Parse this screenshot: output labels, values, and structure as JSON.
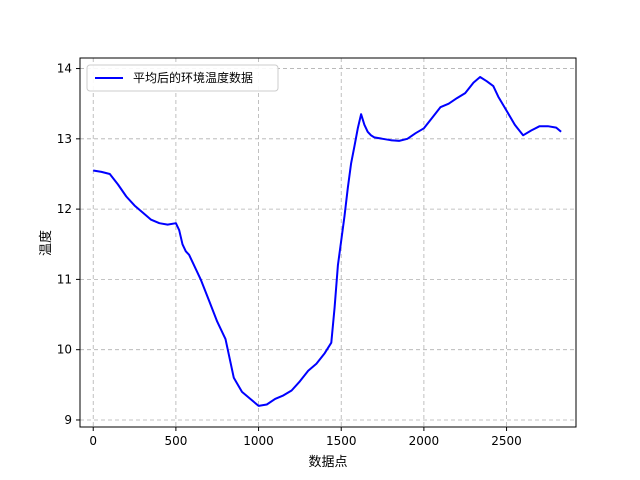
{
  "chart_data": {
    "type": "line",
    "title": "",
    "xlabel": "数据点",
    "ylabel": "温度",
    "xlim": [
      -80,
      2920
    ],
    "ylim": [
      8.9,
      14.15
    ],
    "xticks": [
      0,
      500,
      1000,
      1500,
      2000,
      2500
    ],
    "yticks": [
      9,
      10,
      11,
      12,
      13,
      14
    ],
    "grid": true,
    "legend_position": "top-left",
    "series": [
      {
        "name": "平均后的环境温度数据",
        "color": "#0000ff",
        "x": [
          0,
          50,
          100,
          150,
          200,
          250,
          300,
          350,
          400,
          450,
          500,
          520,
          540,
          560,
          580,
          600,
          650,
          700,
          750,
          800,
          850,
          900,
          950,
          1000,
          1050,
          1100,
          1150,
          1200,
          1250,
          1300,
          1350,
          1400,
          1440,
          1460,
          1480,
          1500,
          1520,
          1540,
          1560,
          1580,
          1600,
          1620,
          1640,
          1660,
          1680,
          1700,
          1750,
          1800,
          1850,
          1900,
          1950,
          2000,
          2050,
          2100,
          2150,
          2200,
          2250,
          2300,
          2340,
          2380,
          2420,
          2450,
          2500,
          2550,
          2600,
          2650,
          2700,
          2750,
          2800,
          2830
        ],
        "y": [
          12.55,
          12.53,
          12.5,
          12.35,
          12.18,
          12.05,
          11.95,
          11.85,
          11.8,
          11.78,
          11.8,
          11.7,
          11.5,
          11.4,
          11.35,
          11.25,
          11.0,
          10.7,
          10.4,
          10.15,
          9.6,
          9.4,
          9.3,
          9.2,
          9.22,
          9.3,
          9.35,
          9.42,
          9.55,
          9.7,
          9.8,
          9.95,
          10.1,
          10.6,
          11.2,
          11.55,
          11.9,
          12.3,
          12.65,
          12.9,
          13.15,
          13.35,
          13.2,
          13.1,
          13.05,
          13.02,
          13.0,
          12.98,
          12.97,
          13.0,
          13.08,
          13.15,
          13.3,
          13.45,
          13.5,
          13.58,
          13.65,
          13.8,
          13.88,
          13.82,
          13.75,
          13.6,
          13.4,
          13.2,
          13.05,
          13.12,
          13.18,
          13.18,
          13.16,
          13.1
        ]
      }
    ]
  }
}
